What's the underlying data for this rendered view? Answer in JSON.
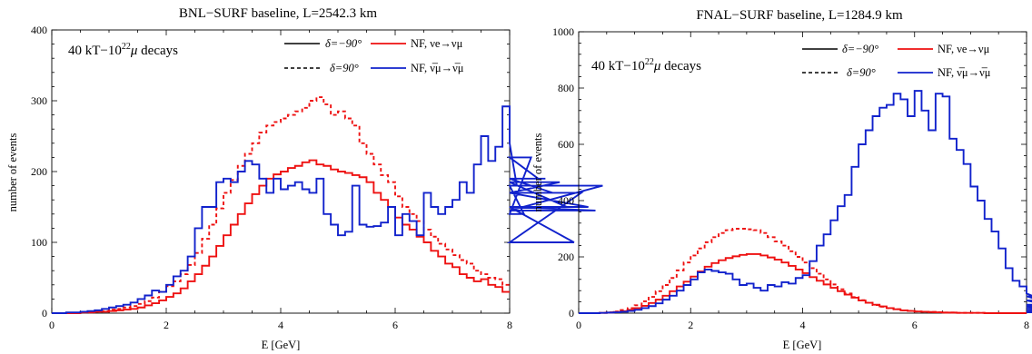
{
  "chart_data": [
    {
      "type": "line",
      "title": "BNL−SURF baseline, L=2542.3 km",
      "xlabel": "E [GeV]",
      "ylabel": "number of events",
      "xlim": [
        0,
        8
      ],
      "ylim": [
        0,
        400
      ],
      "xticks": [
        "0",
        "2",
        "4",
        "6",
        "8"
      ],
      "yticks": [
        "0",
        "100",
        "200",
        "300",
        "400"
      ],
      "annotation": {
        "prefix": "40 kT−10",
        "sup": "22",
        "mu": "μ",
        "suffix": " decays"
      },
      "legend": [
        {
          "label_main": "δ=−90°",
          "style": "solid",
          "color": "#000000"
        },
        {
          "label_main": "δ=90°",
          "style": "dashed",
          "color": "#000000"
        },
        {
          "label_main": "NF, νe→νμ",
          "style": "solid",
          "color": "#ee1111"
        },
        {
          "label_main": "NF, ν̅μ→ν̅μ",
          "style": "solid",
          "color": "#1122cc"
        }
      ],
      "step": 0.125,
      "series": [
        {
          "color": "#ee1111",
          "dash": false,
          "values": [
            0,
            0,
            0,
            0,
            1,
            1,
            2,
            2,
            3,
            4,
            5,
            6,
            8,
            11,
            14,
            18,
            23,
            28,
            35,
            45,
            55,
            67,
            80,
            95,
            110,
            125,
            140,
            155,
            168,
            180,
            190,
            196,
            200,
            205,
            208,
            213,
            216,
            210,
            208,
            203,
            200,
            198,
            195,
            192,
            185,
            170,
            160,
            150,
            135,
            125,
            118,
            108,
            100,
            88,
            80,
            70,
            65,
            55,
            50,
            45,
            48,
            40,
            37,
            30
          ]
        },
        {
          "color": "#ee1111",
          "dash": true,
          "values": [
            0,
            0,
            0,
            0,
            1,
            1,
            2,
            3,
            5,
            6,
            8,
            10,
            13,
            17,
            22,
            30,
            38,
            45,
            55,
            68,
            85,
            105,
            125,
            148,
            170,
            188,
            208,
            225,
            240,
            255,
            265,
            270,
            275,
            280,
            285,
            290,
            300,
            305,
            295,
            280,
            285,
            275,
            265,
            240,
            225,
            210,
            195,
            185,
            165,
            150,
            140,
            130,
            118,
            108,
            98,
            90,
            82,
            75,
            70,
            60,
            55,
            50,
            48,
            40
          ]
        },
        {
          "color": "#1122cc",
          "dash": false,
          "values": [
            0,
            0,
            1,
            1,
            2,
            3,
            4,
            6,
            8,
            10,
            12,
            15,
            20,
            25,
            32,
            30,
            40,
            52,
            60,
            80,
            120,
            150,
            150,
            185,
            190,
            185,
            200,
            215,
            210,
            190,
            170,
            190,
            175,
            180,
            185,
            175,
            170,
            190,
            140,
            125,
            110,
            115,
            180,
            125,
            122,
            123,
            128,
            150,
            110,
            140,
            130,
            110,
            170,
            150,
            140,
            150,
            160,
            185,
            170,
            210,
            250,
            215,
            235,
            292,
            240,
            180,
            140,
            220,
            190,
            190,
            170,
            185,
            150,
            100,
            170,
            150,
            145,
            180
          ]
        }
      ]
    },
    {
      "type": "line",
      "title": "FNAL−SURF baseline, L=1284.9 km",
      "xlabel": "E [GeV]",
      "ylabel": "number of events",
      "xlim": [
        0,
        8
      ],
      "ylim": [
        0,
        1000
      ],
      "xticks": [
        "0",
        "2",
        "4",
        "6",
        "8"
      ],
      "yticks": [
        "0",
        "200",
        "400",
        "600",
        "800",
        "1000"
      ],
      "annotation": {
        "prefix": "40 kT−10",
        "sup": "22",
        "mu": "μ",
        "suffix": " decays"
      },
      "legend": [
        {
          "label_main": "δ=−90°",
          "style": "solid",
          "color": "#000000"
        },
        {
          "label_main": "δ=90°",
          "style": "dashed",
          "color": "#000000"
        },
        {
          "label_main": "NF, νe→νμ",
          "style": "solid",
          "color": "#ee1111"
        },
        {
          "label_main": "NF, ν̅μ→ν̅μ",
          "style": "solid",
          "color": "#1122cc"
        }
      ],
      "step": 0.125,
      "series": [
        {
          "color": "#ee1111",
          "dash": false,
          "values": [
            0,
            0,
            0,
            1,
            2,
            4,
            7,
            12,
            18,
            26,
            36,
            48,
            62,
            78,
            95,
            112,
            130,
            148,
            165,
            178,
            188,
            196,
            202,
            207,
            210,
            210,
            205,
            198,
            190,
            180,
            168,
            155,
            142,
            128,
            115,
            102,
            90,
            78,
            66,
            55,
            45,
            37,
            30,
            24,
            18,
            14,
            10,
            8,
            6,
            5,
            4,
            3,
            2,
            2,
            1,
            1,
            1,
            1,
            0,
            0,
            0,
            0,
            0,
            0
          ]
        },
        {
          "color": "#ee1111",
          "dash": true,
          "values": [
            0,
            0,
            0,
            1,
            3,
            6,
            11,
            18,
            28,
            42,
            58,
            78,
            100,
            125,
            152,
            180,
            205,
            230,
            252,
            270,
            285,
            295,
            300,
            300,
            298,
            295,
            285,
            270,
            255,
            240,
            220,
            200,
            180,
            160,
            140,
            120,
            102,
            85,
            70,
            57,
            46,
            37,
            29,
            23,
            18,
            14,
            10,
            8,
            6,
            5,
            4,
            3,
            2,
            2,
            1,
            1,
            1,
            1,
            0,
            0,
            0,
            0,
            0,
            0
          ]
        },
        {
          "color": "#1122cc",
          "dash": false,
          "values": [
            0,
            0,
            0,
            1,
            2,
            3,
            5,
            8,
            12,
            18,
            25,
            35,
            48,
            62,
            80,
            100,
            120,
            145,
            155,
            150,
            145,
            140,
            120,
            100,
            105,
            90,
            80,
            100,
            95,
            110,
            105,
            125,
            135,
            185,
            240,
            280,
            330,
            380,
            420,
            520,
            600,
            650,
            700,
            730,
            740,
            780,
            760,
            700,
            790,
            720,
            650,
            780,
            770,
            620,
            580,
            530,
            450,
            400,
            335,
            290,
            230,
            160,
            115,
            95,
            70,
            60,
            45,
            30,
            25,
            20,
            18,
            16,
            12,
            10,
            8,
            5,
            4,
            3
          ]
        }
      ]
    }
  ]
}
